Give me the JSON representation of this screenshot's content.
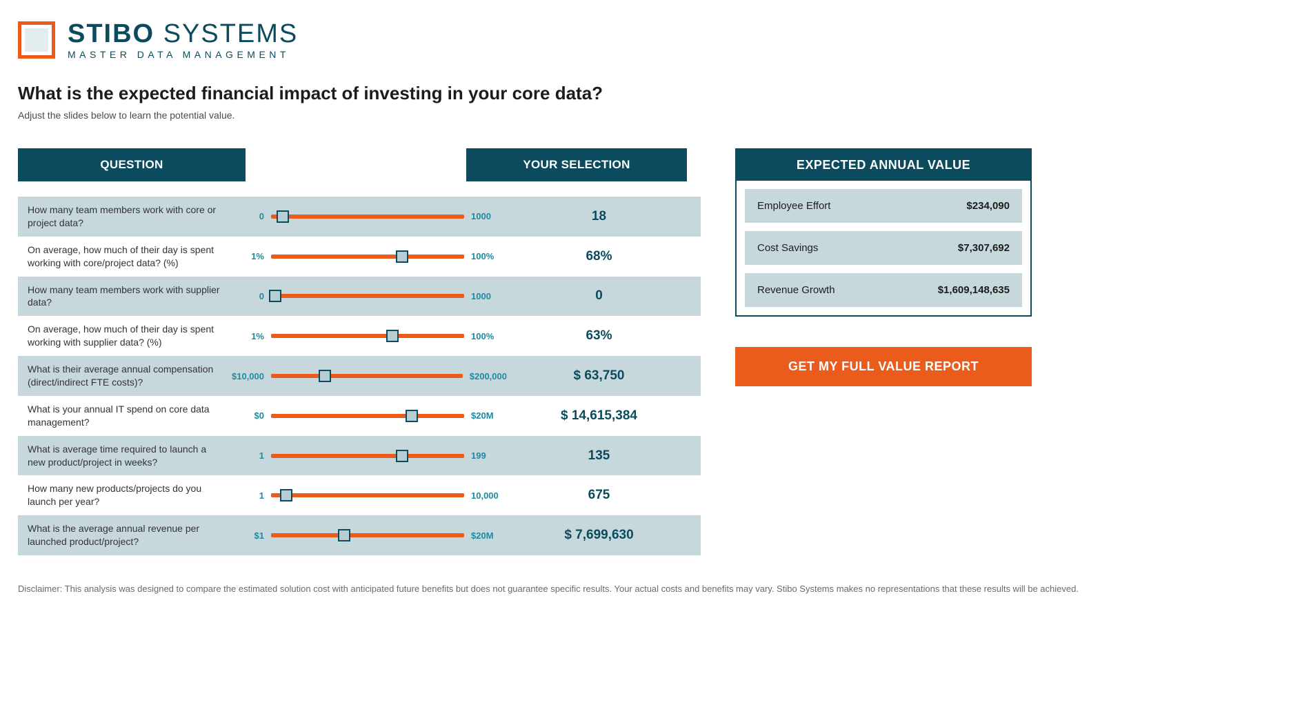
{
  "brand": {
    "name_bold": "STIBO",
    "name_thin": "SYSTEMS",
    "tagline": "MASTER DATA MANAGEMENT",
    "accent_color": "#ea5b1c",
    "primary_color": "#0b4b5d",
    "shade_color": "#c7d8dd"
  },
  "heading": {
    "title": "What is the expected financial impact of investing in your core data?",
    "subtitle": "Adjust the slides below to learn the potential value."
  },
  "table_headers": {
    "question": "QUESTION",
    "selection": "YOUR SELECTION"
  },
  "questions": [
    {
      "text": "How many team members work with core or project data?",
      "min": "0",
      "max": "1000",
      "value": "18",
      "thumb_pct": 6,
      "shade": true
    },
    {
      "text": "On average, how much of their day is spent working with core/project data? (%)",
      "min": "1%",
      "max": "100%",
      "value": "68%",
      "thumb_pct": 68,
      "shade": false
    },
    {
      "text": "How many team members work with supplier data?",
      "min": "0",
      "max": "1000",
      "value": "0",
      "thumb_pct": 2,
      "shade": true
    },
    {
      "text": "On average, how much of their day is spent working with supplier data? (%)",
      "min": "1%",
      "max": "100%",
      "value": "63%",
      "thumb_pct": 63,
      "shade": false
    },
    {
      "text": "What is their average annual compensation (direct/indirect FTE costs)?",
      "min": "$10,000",
      "max": "$200,000",
      "value": "$ 63,750",
      "thumb_pct": 28,
      "shade": true
    },
    {
      "text": "What is your annual IT spend on core data management?",
      "min": "$0",
      "max": "$20M",
      "value": "$ 14,615,384",
      "thumb_pct": 73,
      "shade": false
    },
    {
      "text": "What is average time required to launch a new product/project in weeks?",
      "min": "1",
      "max": "199",
      "value": "135",
      "thumb_pct": 68,
      "shade": true
    },
    {
      "text": "How many new products/projects do you launch per year?",
      "min": "1",
      "max": "10,000",
      "value": "675",
      "thumb_pct": 8,
      "shade": false
    },
    {
      "text": "What is the average annual revenue per launched product/project?",
      "min": "$1",
      "max": "$20M",
      "value": "$ 7,699,630",
      "thumb_pct": 38,
      "shade": true
    }
  ],
  "expected_panel": {
    "title": "EXPECTED ANNUAL VALUE",
    "rows": [
      {
        "label": "Employee Effort",
        "amount": "$234,090"
      },
      {
        "label": "Cost Savings",
        "amount": "$7,307,692"
      },
      {
        "label": "Revenue Growth",
        "amount": "$1,609,148,635"
      }
    ]
  },
  "cta": {
    "label": "GET MY FULL VALUE REPORT"
  },
  "disclaimer": "Disclaimer: This analysis was designed to compare the estimated solution cost with anticipated future benefits but does not guarantee specific results.  Your actual costs and benefits may vary.  Stibo Systems makes no representations that these results will be achieved."
}
